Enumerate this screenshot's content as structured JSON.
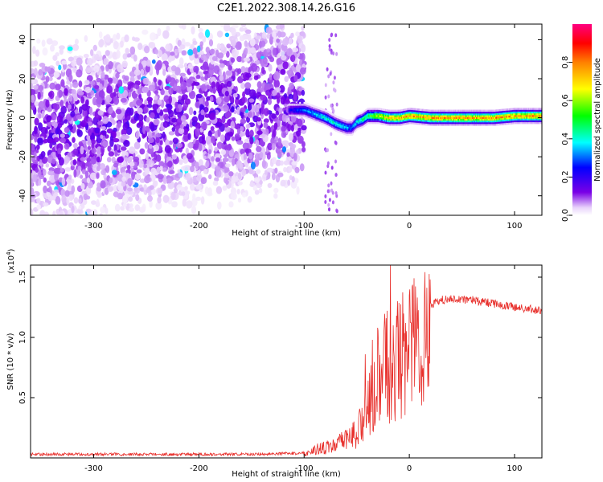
{
  "figure_title": "C2E1.2022.308.14.26.G16",
  "chart_data": [
    {
      "type": "heatmap",
      "title": "C2E1.2022.308.14.26.G16",
      "xlabel": "Height of straight line (km)",
      "ylabel": "Frequency (Hz)",
      "xlim": [
        -360,
        126
      ],
      "ylim": [
        -50,
        48
      ],
      "x_ticks": [
        -300,
        -200,
        -100,
        0,
        100
      ],
      "x_tick_labels": [
        "-300",
        "-200",
        "-100",
        "0",
        "100"
      ],
      "y_ticks": [
        -40,
        -20,
        0,
        20,
        40
      ],
      "y_tick_labels": [
        "-40",
        "-20",
        "0",
        "20",
        "40"
      ],
      "colorbar": {
        "label": "Normalized spectral amplitude",
        "range": [
          0,
          1
        ],
        "ticks": [
          0.0,
          0.2,
          0.4,
          0.6,
          0.8
        ],
        "tick_labels": [
          "0.0",
          "0.2",
          "0.4",
          "0.6",
          "0.8"
        ],
        "colormap": "rainbow"
      },
      "features": {
        "noise_region_x": [
          -360,
          -100
        ],
        "noise_amplitude": 0.15,
        "noise_tilt_hz_per_km": 0.07,
        "signal_track": {
          "x": [
            -115,
            -100,
            -90,
            -80,
            -70,
            -60,
            -55,
            -50,
            -45,
            -40,
            -30,
            -20,
            -10,
            0,
            20,
            50,
            80,
            100,
            126
          ],
          "freq": [
            4,
            4,
            2,
            0,
            -3,
            -5,
            -5,
            -2,
            -1,
            1,
            1,
            0,
            0,
            1,
            0,
            0,
            0,
            1,
            1
          ],
          "amplitude": [
            0.2,
            0.3,
            0.35,
            0.4,
            0.4,
            0.35,
            0.3,
            0.4,
            0.45,
            0.5,
            0.6,
            0.7,
            0.75,
            0.75,
            0.75,
            0.75,
            0.75,
            0.75,
            0.75
          ]
        }
      }
    },
    {
      "type": "line",
      "xlabel": "Height of straight line (km)",
      "ylabel": "SNR (10 * v/v)",
      "y_multiplier": "(x10",
      "y_multiplier_exponent": "4",
      "y_multiplier_close": ")",
      "xlim": [
        -360,
        126
      ],
      "ylim": [
        0,
        16000
      ],
      "x_ticks": [
        -300,
        -200,
        -100,
        0,
        100
      ],
      "x_tick_labels": [
        "-300",
        "-200",
        "-100",
        "0",
        "100"
      ],
      "y_ticks": [
        5000,
        10000,
        15000
      ],
      "y_tick_labels": [
        "0.5",
        "1.0",
        "1.5"
      ],
      "series": [
        {
          "color": "#e8302c",
          "envelope_x": [
            -360,
            -150,
            -100,
            -90,
            -80,
            -70,
            -60,
            -50,
            -45,
            -40,
            -35,
            -30,
            -25,
            -20,
            -15,
            -10,
            -5,
            0,
            5,
            10,
            20,
            30,
            40,
            60,
            80,
            100,
            110,
            126
          ],
          "envelope_y": [
            300,
            300,
            400,
            800,
            1000,
            1200,
            1800,
            2500,
            3500,
            4500,
            6000,
            7500,
            8500,
            9000,
            9500,
            10000,
            10500,
            10800,
            11300,
            12000,
            12700,
            13100,
            13200,
            13100,
            12800,
            12500,
            12400,
            12200
          ],
          "spikes": [
            {
              "x": -18,
              "y": 16000
            },
            {
              "x": -30,
              "y": 10800
            },
            {
              "x": -35,
              "y": 9800
            },
            {
              "x": -42,
              "y": 8600
            }
          ]
        }
      ]
    }
  ]
}
